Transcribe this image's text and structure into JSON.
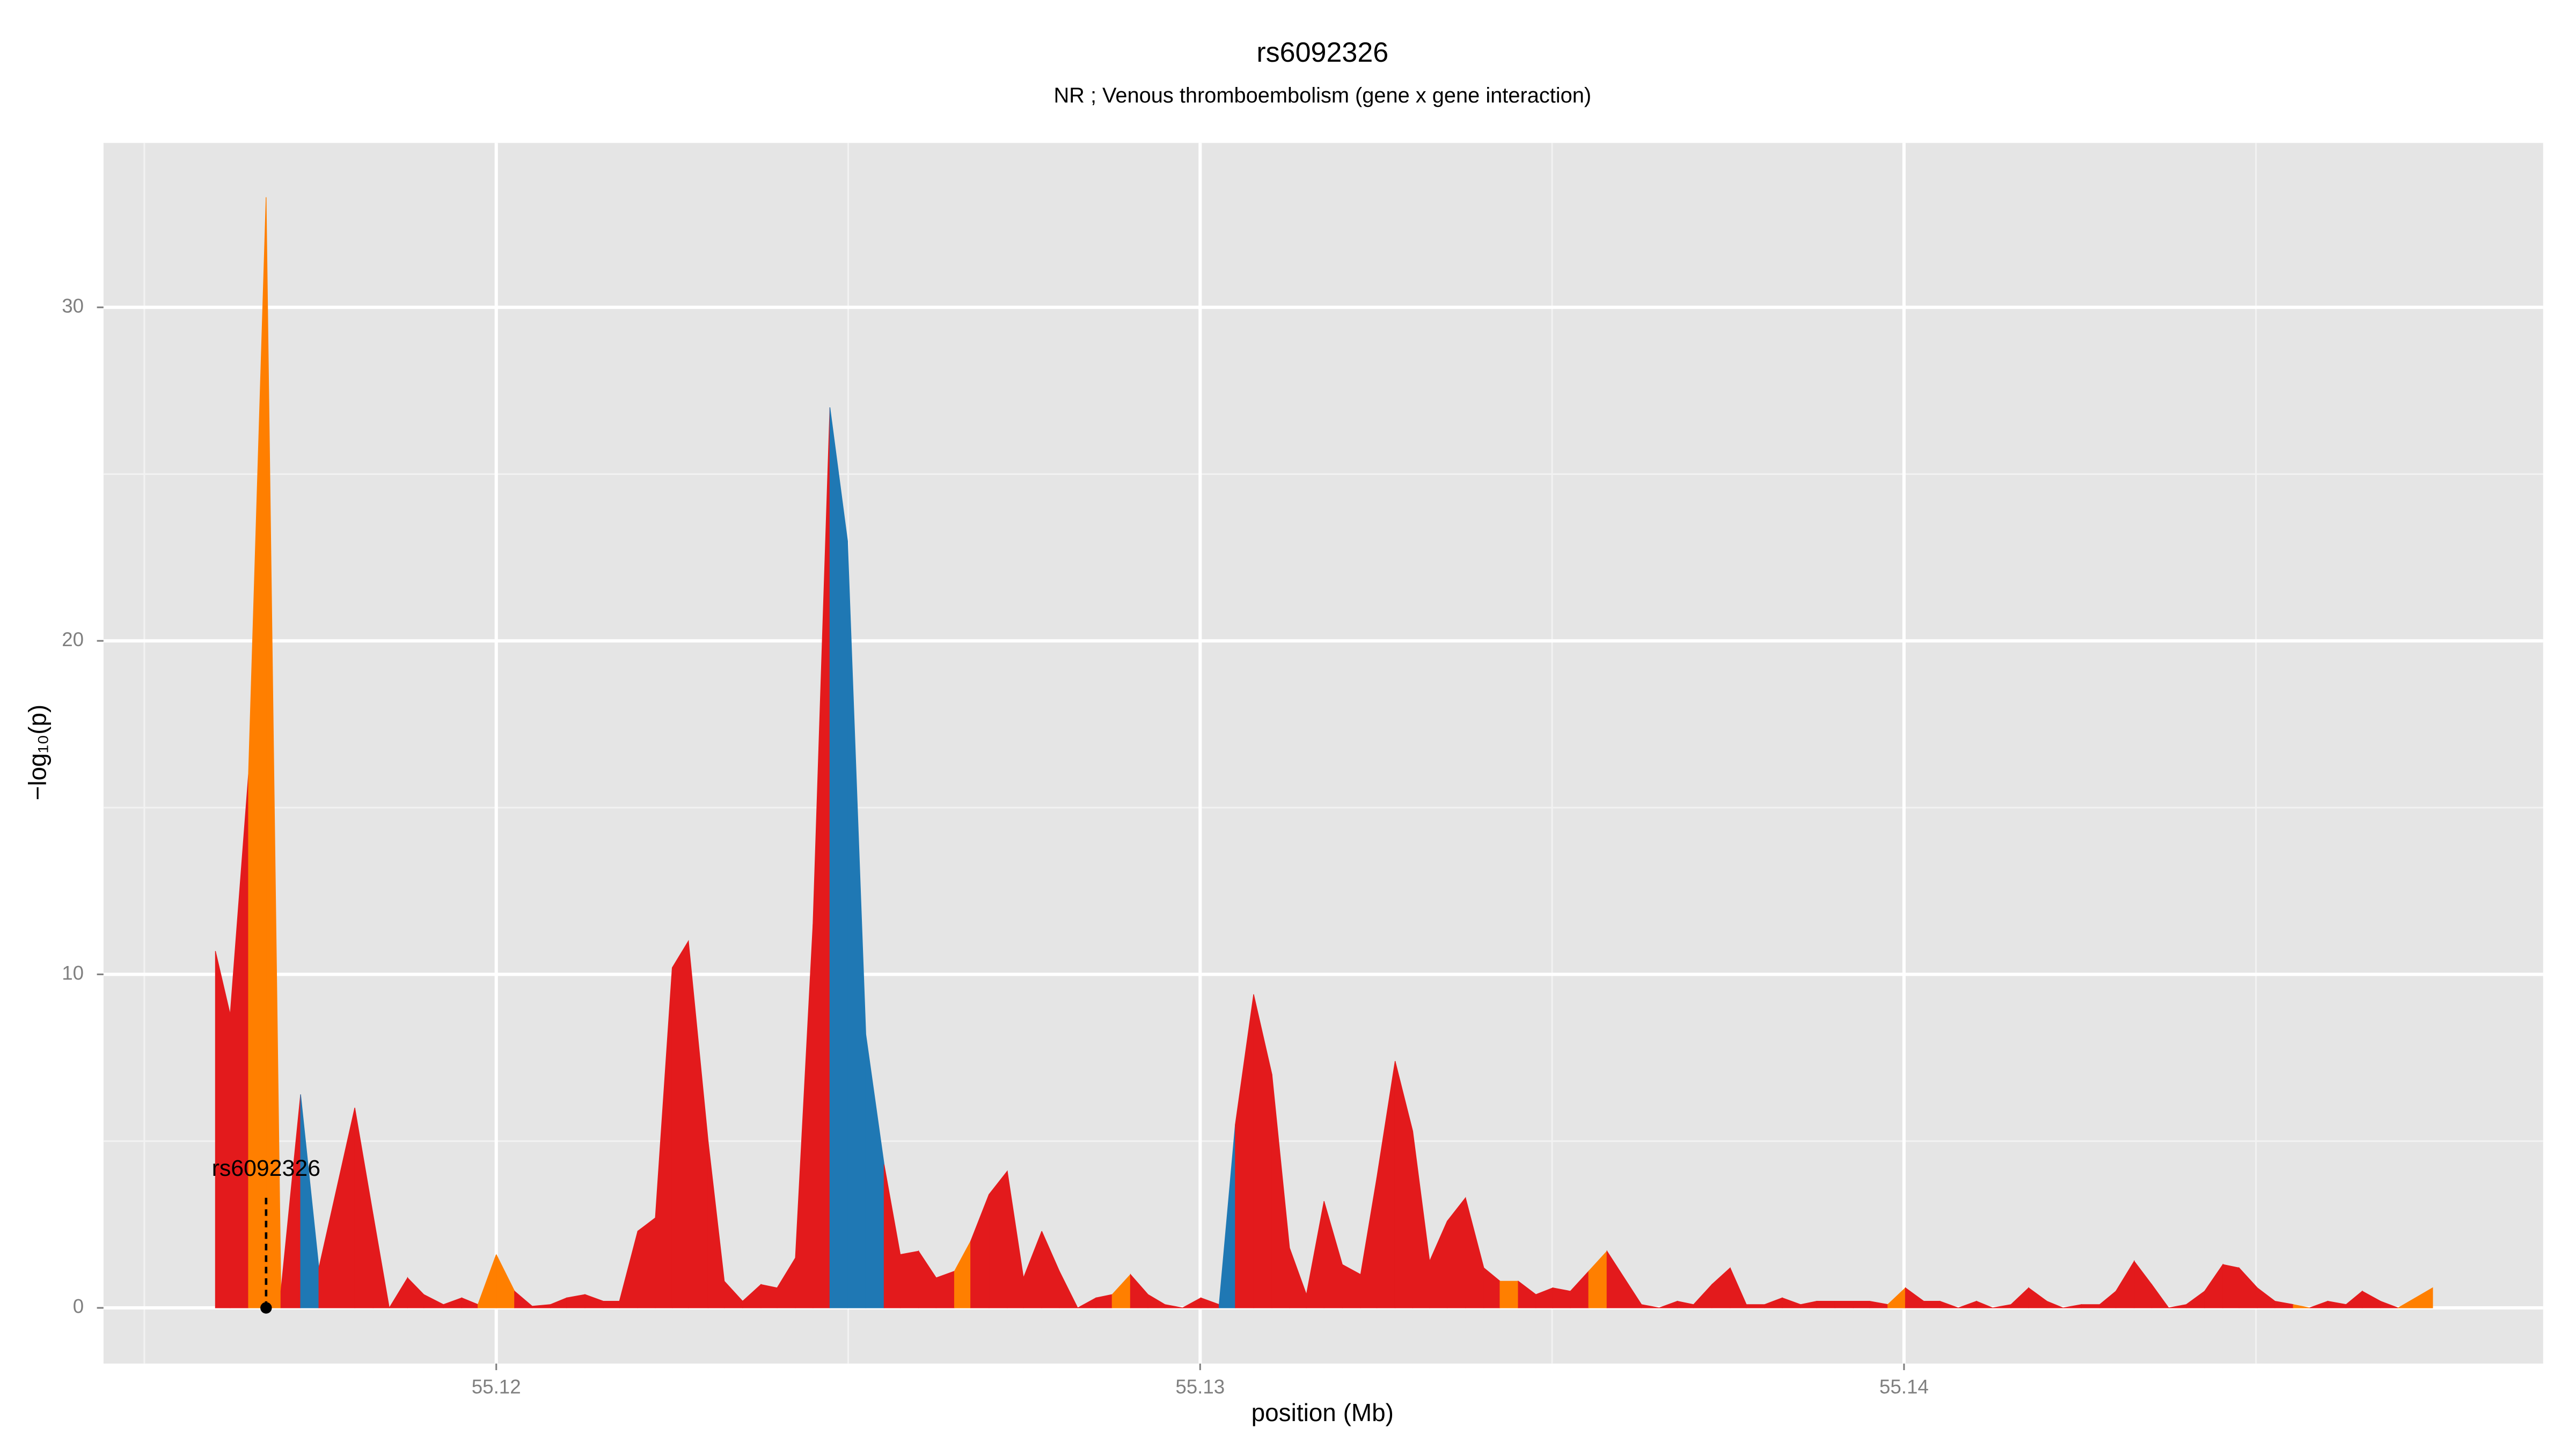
{
  "chart_data": {
    "type": "area",
    "title": "rs6092326",
    "subtitle": "NR ; Venous thromboembolism (gene x gene interaction)",
    "x_label": "position (Mb)",
    "y_label": "−log₁₀(p)",
    "xlim": [
      55.11442,
      55.14908
    ],
    "ylim": [
      -1.67,
      34.93
    ],
    "xticks": [
      55.12,
      55.13,
      55.14
    ],
    "yticks": [
      0,
      10,
      20,
      30
    ],
    "grid": true,
    "x": [
      55.11601,
      55.11622,
      55.11648,
      55.11673,
      55.11694,
      55.11722,
      55.11748,
      55.11799,
      55.11825,
      55.11848,
      55.11874,
      55.11897,
      55.11925,
      55.11951,
      55.11974,
      55.12,
      55.12026,
      55.12051,
      55.12077,
      55.121,
      55.12126,
      55.12152,
      55.12175,
      55.12201,
      55.12226,
      55.1225,
      55.12273,
      55.12301,
      55.12324,
      55.1235,
      55.12376,
      55.12399,
      55.12425,
      55.1245,
      55.12474,
      55.12499,
      55.12525,
      55.12551,
      55.12574,
      55.126,
      55.12625,
      55.12651,
      55.12674,
      55.127,
      55.12726,
      55.12749,
      55.12775,
      55.128,
      55.12826,
      55.12852,
      55.12875,
      55.12901,
      55.12926,
      55.1295,
      55.12975,
      55.13001,
      55.13027,
      55.1305,
      55.13076,
      55.13102,
      55.13127,
      55.13151,
      55.13176,
      55.13202,
      55.13228,
      55.13251,
      55.13277,
      55.13302,
      55.13326,
      55.13351,
      55.13377,
      55.13403,
      55.13426,
      55.13452,
      55.13477,
      55.13501,
      55.13526,
      55.13552,
      55.13578,
      55.13627,
      55.13652,
      55.13678,
      55.13701,
      55.13727,
      55.13753,
      55.13776,
      55.13802,
      55.13827,
      55.13853,
      55.13876,
      55.13902,
      55.13928,
      55.13951,
      55.13977,
      55.14002,
      55.14028,
      55.14051,
      55.14077,
      55.14103,
      55.14126,
      55.14152,
      55.14177,
      55.14203,
      55.14226,
      55.14252,
      55.14278,
      55.14301,
      55.14327,
      55.14352,
      55.14376,
      55.14401,
      55.14427,
      55.14453,
      55.14476,
      55.14502,
      55.14527,
      55.14553,
      55.14576,
      55.14602,
      55.14628,
      55.14651,
      55.14677,
      55.14702,
      55.14751
    ],
    "values": [
      10.7,
      8.8,
      16,
      33.3,
      0.5,
      6.4,
      1.2,
      6,
      2.8,
      0,
      0.9,
      0.4,
      0.1,
      0.3,
      0.1,
      1.6,
      0.5,
      0.05,
      0.1,
      0.3,
      0.4,
      0.2,
      0.2,
      2.3,
      2.7,
      10.2,
      11,
      5,
      0.8,
      0.2,
      0.7,
      0.6,
      1.5,
      11.5,
      27,
      23,
      8.2,
      4.3,
      1.6,
      1.7,
      0.9,
      1.1,
      2,
      3.4,
      4.1,
      0.9,
      2.3,
      1.1,
      0,
      0.3,
      0.4,
      1,
      0.4,
      0.1,
      0,
      0.3,
      0.1,
      5.5,
      9.4,
      7,
      1.8,
      0.4,
      3.2,
      1.3,
      1,
      3.9,
      7.4,
      5.3,
      1.4,
      2.6,
      3.3,
      1.2,
      0.8,
      0.8,
      0.4,
      0.6,
      0.5,
      1.1,
      1.7,
      0.1,
      0,
      0.2,
      0.1,
      0.7,
      1.2,
      0.1,
      0.1,
      0.3,
      0.1,
      0.2,
      0.2,
      0.2,
      0.2,
      0.1,
      0.6,
      0.2,
      0.2,
      0,
      0.2,
      0,
      0.1,
      0.6,
      0.2,
      0,
      0.1,
      0.1,
      0.5,
      1.4,
      0.7,
      0,
      0.1,
      0.5,
      1.3,
      1.2,
      0.6,
      0.2,
      0.1,
      0,
      0.2,
      0.1,
      0.5,
      0.2,
      0,
      0.6
    ],
    "segment_colors": [
      "#e31a1c",
      "#e31a1c",
      "#ff7f00",
      "#ff7f00",
      "#e31a1c",
      "#1f78b4",
      "#e31a1c",
      "#e31a1c",
      "#e31a1c",
      "#e31a1c",
      "#e31a1c",
      "#e31a1c",
      "#e31a1c",
      "#e31a1c",
      "#ff7f00",
      "#ff7f00",
      "#e31a1c",
      "#e31a1c",
      "#e31a1c",
      "#e31a1c",
      "#e31a1c",
      "#e31a1c",
      "#e31a1c",
      "#e31a1c",
      "#e31a1c",
      "#e31a1c",
      "#e31a1c",
      "#e31a1c",
      "#e31a1c",
      "#e31a1c",
      "#e31a1c",
      "#e31a1c",
      "#e31a1c",
      "#e31a1c",
      "#1f78b4",
      "#1f78b4",
      "#1f78b4",
      "#e31a1c",
      "#e31a1c",
      "#e31a1c",
      "#e31a1c",
      "#ff7f00",
      "#e31a1c",
      "#e31a1c",
      "#e31a1c",
      "#e31a1c",
      "#e31a1c",
      "#e31a1c",
      "#e31a1c",
      "#e31a1c",
      "#ff7f00",
      "#e31a1c",
      "#e31a1c",
      "#e31a1c",
      "#e31a1c",
      "#e31a1c",
      "#1f78b4",
      "#e31a1c",
      "#e31a1c",
      "#e31a1c",
      "#e31a1c",
      "#e31a1c",
      "#e31a1c",
      "#e31a1c",
      "#e31a1c",
      "#e31a1c",
      "#e31a1c",
      "#e31a1c",
      "#e31a1c",
      "#e31a1c",
      "#e31a1c",
      "#e31a1c",
      "#ff7f00",
      "#e31a1c",
      "#e31a1c",
      "#e31a1c",
      "#e31a1c",
      "#ff7f00",
      "#e31a1c",
      "#e31a1c",
      "#e31a1c",
      "#e31a1c",
      "#e31a1c",
      "#e31a1c",
      "#e31a1c",
      "#e31a1c",
      "#e31a1c",
      "#e31a1c",
      "#e31a1c",
      "#e31a1c",
      "#e31a1c",
      "#e31a1c",
      "#e31a1c",
      "#ff7f00",
      "#e31a1c",
      "#e31a1c",
      "#e31a1c",
      "#e31a1c",
      "#e31a1c",
      "#e31a1c",
      "#e31a1c",
      "#e31a1c",
      "#e31a1c",
      "#e31a1c",
      "#e31a1c",
      "#e31a1c",
      "#e31a1c",
      "#e31a1c",
      "#e31a1c",
      "#e31a1c",
      "#e31a1c",
      "#e31a1c",
      "#e31a1c",
      "#e31a1c",
      "#e31a1c",
      "#e31a1c",
      "#ff7f00",
      "#e31a1c",
      "#e31a1c",
      "#e31a1c",
      "#e31a1c",
      "#e31a1c",
      "#ff7f00"
    ],
    "annotation": {
      "label": "rs6092326",
      "x": 55.11673,
      "y": 0
    }
  }
}
